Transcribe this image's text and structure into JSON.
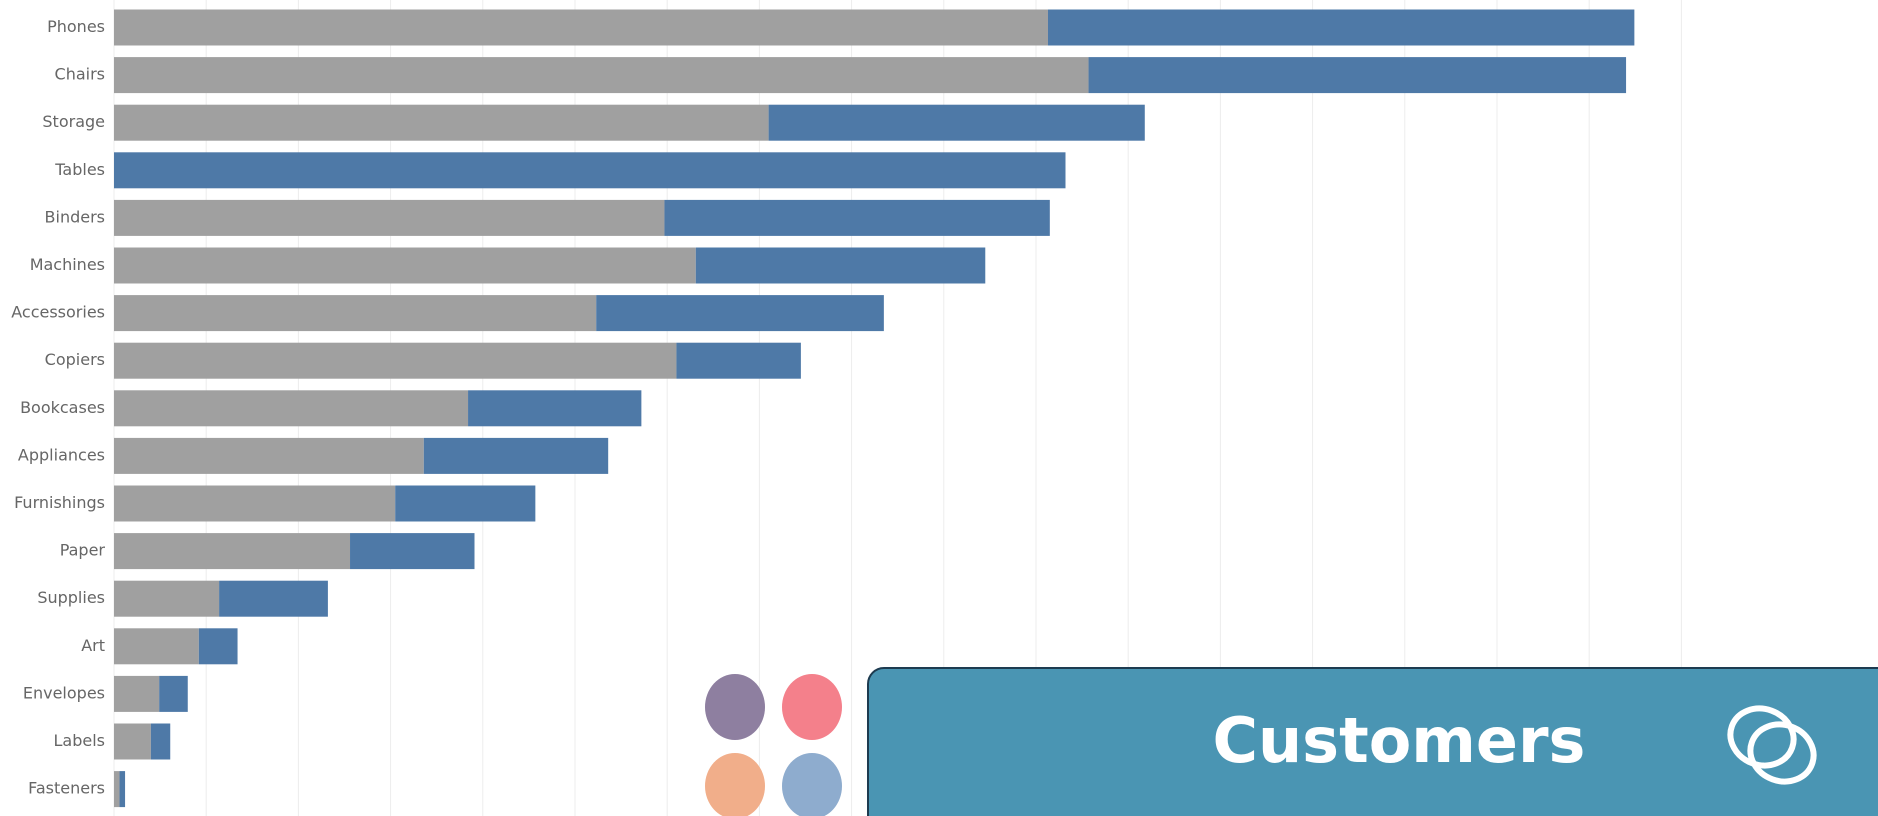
{
  "chart_data": {
    "type": "stacked_bar_horizontal",
    "categories": [
      "Phones",
      "Chairs",
      "Storage",
      "Tables",
      "Binders",
      "Machines",
      "Accessories",
      "Copiers",
      "Bookcases",
      "Appliances",
      "Furnishings",
      "Paper",
      "Supplies",
      "Art",
      "Envelopes",
      "Labels",
      "Fasteners"
    ],
    "series": [
      {
        "color": "#a0a0a0",
        "values": [
          101.3,
          105.7,
          71.0,
          0,
          59.7,
          63.1,
          52.3,
          61.0,
          38.4,
          33.6,
          30.5,
          25.6,
          11.4,
          9.2,
          4.9,
          4.0,
          0.6
        ]
      },
      {
        "color": "#4e79a7",
        "values": [
          63.6,
          58.3,
          40.8,
          103.2,
          41.8,
          31.4,
          31.2,
          13.5,
          18.8,
          20.0,
          15.2,
          13.5,
          11.8,
          4.2,
          3.1,
          2.1,
          0.6
        ]
      }
    ],
    "xlim": [
      0,
      191
    ],
    "xticks": [
      0,
      10,
      20,
      30,
      40,
      50,
      60,
      70,
      80,
      90,
      100,
      110,
      120,
      130,
      140,
      150,
      160,
      170
    ],
    "grid": true
  },
  "overlay": {
    "label": "Customers"
  }
}
